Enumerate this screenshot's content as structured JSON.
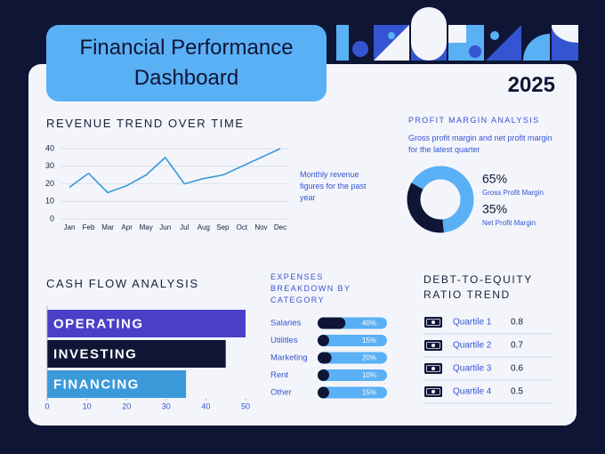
{
  "title": "Financial Performance Dashboard",
  "year": "2025",
  "chart_data": [
    {
      "type": "line",
      "title": "REVENUE TREND OVER TIME",
      "categories": [
        "Jan",
        "Feb",
        "Mar",
        "Apr",
        "May",
        "Jun",
        "Jul",
        "Aug",
        "Sep",
        "Oct",
        "Nov",
        "Dec"
      ],
      "values": [
        18,
        26,
        15,
        19,
        25,
        35,
        20,
        23,
        25,
        30,
        35,
        40
      ],
      "ylim": [
        0,
        40
      ],
      "yticks": [
        0,
        10,
        20,
        30,
        40
      ],
      "grid": true,
      "color": "#3a9ad9",
      "annotation": "Monthly revenue figures for the past year"
    },
    {
      "type": "donut",
      "title": "PROFIT MARGIN ANALYSIS",
      "subtitle": "Gross profit margin and net profit margin for the latest quarter",
      "categories": [
        "Gross Profit Margin",
        "Net Profit Margin"
      ],
      "values": [
        65,
        35
      ],
      "value_labels": [
        "65%",
        "35%"
      ],
      "colors": [
        "#5ab0f5",
        "#0f1535"
      ]
    },
    {
      "type": "bar",
      "horizontal": true,
      "title": "CASH FLOW ANALYSIS",
      "categories": [
        "OPERATING",
        "INVESTING",
        "FINANCING"
      ],
      "values": [
        50,
        45,
        35
      ],
      "colors": [
        "#4a3fc7",
        "#0f1535",
        "#3a9ad9"
      ],
      "xlim": [
        0,
        50
      ],
      "xticks": [
        0,
        10,
        20,
        30,
        40,
        50
      ]
    },
    {
      "type": "progress",
      "title": "EXPENSES BREAKDOWN BY CATEGORY",
      "categories": [
        "Salaries",
        "Utilitles",
        "Marketing",
        "Rent",
        "Other"
      ],
      "values": [
        40,
        15,
        20,
        10,
        15
      ],
      "value_labels": [
        "40%",
        "15%",
        "20%",
        "10%",
        "15%"
      ],
      "xlim": [
        0,
        100
      ],
      "track_color": "#5ab0f5",
      "color": "#0f1535"
    },
    {
      "type": "table",
      "title": "DEBT-TO-EQUITY RATIO TREND",
      "categories": [
        "Quartile 1",
        "Quartile 2",
        "Quartile 3",
        "Quartile 4"
      ],
      "values": [
        0.8,
        0.7,
        0.6,
        0.5
      ]
    }
  ]
}
